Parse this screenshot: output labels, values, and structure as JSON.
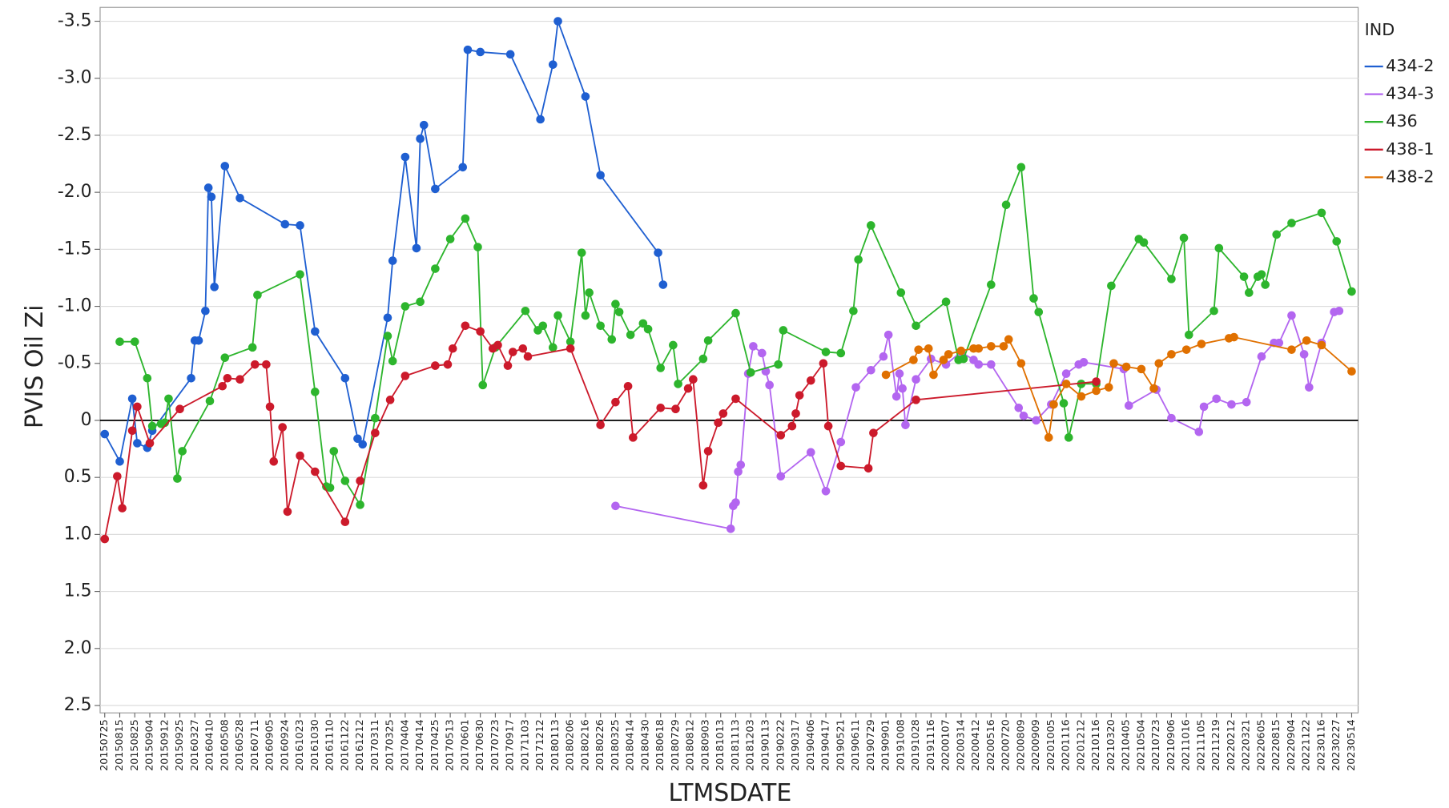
{
  "chart_data": {
    "type": "line",
    "x_label": "LTMSDATE",
    "y_label": "PVIS Oil Zi",
    "legend_title": "IND",
    "legend": "right",
    "grid": true,
    "hline": 0,
    "ylim": [
      2.5,
      -3.5
    ],
    "yticks": [
      -3.5,
      {
        "value": -3,
        "label": "-3.0"
      },
      -2.5,
      {
        "value": -2,
        "label": "-2.0"
      },
      -1.5,
      {
        "value": -1,
        "label": "-1.0"
      },
      -0.5,
      0,
      0.5,
      {
        "value": 1,
        "label": "1.0"
      },
      1.5,
      {
        "value": 2,
        "label": "2.0"
      },
      2.5
    ],
    "categories": [
      "20150725",
      "20150815",
      "20150825",
      "20150904",
      "20150912",
      "20150925",
      "20160327",
      "20160410",
      "20160508",
      "20160528",
      "20160711",
      "20160905",
      "20160924",
      "20161023",
      "20161030",
      "20161110",
      "20161122",
      "20161212",
      "20170311",
      "20170325",
      "20170404",
      "20170414",
      "20170425",
      "20170513",
      "20170601",
      "20170630",
      "20170723",
      "20170917",
      "20171103",
      "20171212",
      "20180113",
      "20180206",
      "20180216",
      "20180226",
      "20180325",
      "20180414",
      "20180430",
      "20180618",
      "20180729",
      "20180812",
      "20180903",
      "20181013",
      "20181113",
      "20181203",
      "20190113",
      "20190222",
      "20190317",
      "20190406",
      "20190417",
      "20190521",
      "20190611",
      "20190729",
      "20190901",
      "20191008",
      "20191028",
      "20191116",
      "20200107",
      "20200314",
      "20200412",
      "20200516",
      "20200720",
      "20200809",
      "20200909",
      "20201005",
      "20201116",
      "20201212",
      "20210116",
      "20210320",
      "20210405",
      "20210504",
      "20210723",
      "20210906",
      "20211016",
      "20211105",
      "20211219",
      "20220212",
      "20220321",
      "20220605",
      "20220815",
      "20220904",
      "20221122",
      "20230116",
      "20230227",
      "20230514"
    ],
    "series": [
      {
        "name": "434-2",
        "color": "#1f5fd1",
        "x": [
          "20150725",
          "20150815",
          "20150825",
          "20150825",
          "20150904",
          "20150904",
          "20160327",
          "20160327",
          "20160327",
          "20160410",
          "20160410",
          "20160410",
          "20160410",
          "20160508",
          "20160528",
          "20160924",
          "20161023",
          "20161030",
          "20161122",
          "20161212",
          "20161212",
          "20170325",
          "20170325",
          "20170404",
          "20170414",
          "20170414",
          "20170414",
          "20170425",
          "20170601",
          "20170601",
          "20170630",
          "20170917",
          "20171212",
          "20180113",
          "20180113",
          "20180216",
          "20180226",
          "20180618",
          "20180618"
        ],
        "values": [
          0.12,
          0.36,
          -0.19,
          0.2,
          0.24,
          0.09,
          -0.37,
          -0.7,
          -0.7,
          -0.96,
          -2.04,
          -1.96,
          -1.17,
          -2.23,
          -1.95,
          -1.72,
          -1.71,
          -0.78,
          -0.37,
          0.16,
          0.21,
          -0.9,
          -1.4,
          -2.31,
          -1.51,
          -2.47,
          -2.59,
          -2.03,
          -2.22,
          -3.25,
          -3.23,
          -3.21,
          -2.64,
          -3.12,
          -3.5,
          -2.84,
          -2.15,
          -1.47,
          -1.19
        ]
      },
      {
        "name": "434-3",
        "color": "#b366f0",
        "x": [
          "20180325",
          "20181113",
          "20181113",
          "20181113",
          "20181113",
          "20181113",
          "20181203",
          "20181203",
          "20190113",
          "20190113",
          "20190113",
          "20190222",
          "20190406",
          "20190417",
          "20190521",
          "20190611",
          "20190729",
          "20190901",
          "20190901",
          "20191008",
          "20191008",
          "20191008",
          "20191008",
          "20191028",
          "20191116",
          "20200107",
          "20200314",
          "20200412",
          "20200412",
          "20200516",
          "20200809",
          "20200809",
          "20200909",
          "20201005",
          "20201116",
          "20201212",
          "20201212",
          "20210405",
          "20210405",
          "20210723",
          "20210906",
          "20211105",
          "20211105",
          "20211219",
          "20220212",
          "20220321",
          "20220605",
          "20220815",
          "20220815",
          "20220904",
          "20221122",
          "20221122",
          "20230116",
          "20230227",
          "20230227"
        ],
        "values": [
          0.75,
          0.95,
          0.75,
          0.72,
          0.45,
          0.39,
          -0.41,
          -0.65,
          -0.59,
          -0.43,
          -0.31,
          0.49,
          0.28,
          0.62,
          0.19,
          -0.29,
          -0.44,
          -0.56,
          -0.75,
          -0.21,
          -0.41,
          -0.28,
          0.04,
          -0.36,
          -0.54,
          -0.49,
          -0.6,
          -0.53,
          -0.49,
          -0.49,
          -0.11,
          -0.04,
          0,
          -0.14,
          -0.41,
          -0.49,
          -0.51,
          -0.45,
          -0.13,
          -0.27,
          -0.02,
          0.1,
          -0.12,
          -0.19,
          -0.14,
          -0.16,
          -0.56,
          -0.68,
          -0.68,
          -0.92,
          -0.58,
          -0.29,
          -0.68,
          -0.95,
          -0.96
        ]
      },
      {
        "name": "436",
        "color": "#2db52d",
        "x": [
          "20150815",
          "20150825",
          "20150904",
          "20150904",
          "20150912",
          "20150912",
          "20150912",
          "20150925",
          "20150925",
          "20160410",
          "20160508",
          "20160711",
          "20160711",
          "20161023",
          "20161030",
          "20161110",
          "20161110",
          "20161110",
          "20161122",
          "20161212",
          "20170311",
          "20170325",
          "20170325",
          "20170404",
          "20170414",
          "20170425",
          "20170513",
          "20170601",
          "20170630",
          "20170630",
          "20170723",
          "20171103",
          "20171212",
          "20171212",
          "20180113",
          "20180113",
          "20180206",
          "20180216",
          "20180216",
          "20180216",
          "20180226",
          "20180325",
          "20180325",
          "20180325",
          "20180414",
          "20180430",
          "20180430",
          "20180618",
          "20180729",
          "20180729",
          "20180903",
          "20180903",
          "20181113",
          "20181203",
          "20190222",
          "20190222",
          "20190417",
          "20190521",
          "20190611",
          "20190611",
          "20190729",
          "20191008",
          "20191028",
          "20200107",
          "20200314",
          "20200314",
          "20200516",
          "20200720",
          "20200809",
          "20200909",
          "20200909",
          "20201116",
          "20201116",
          "20201212",
          "20210116",
          "20210320",
          "20210504",
          "20210504",
          "20210906",
          "20211016",
          "20211016",
          "20211219",
          "20211219",
          "20220321",
          "20220321",
          "20220605",
          "20220605",
          "20220605",
          "20220815",
          "20220904",
          "20230116",
          "20230227",
          "20230514"
        ],
        "values": [
          -0.69,
          -0.69,
          -0.37,
          0.05,
          0.03,
          0.02,
          -0.19,
          0.51,
          0.27,
          -0.17,
          -0.55,
          -0.64,
          -1.1,
          -1.28,
          -0.25,
          0.58,
          0.59,
          0.27,
          0.53,
          0.74,
          -0.02,
          -0.74,
          -0.52,
          -1,
          -1.04,
          -1.33,
          -1.59,
          -1.77,
          -1.52,
          -0.31,
          -0.64,
          -0.96,
          -0.79,
          -0.83,
          -0.64,
          -0.92,
          -0.69,
          -1.47,
          -0.92,
          -1.12,
          -0.83,
          -0.71,
          -1.02,
          -0.95,
          -0.75,
          -0.85,
          -0.8,
          -0.46,
          -0.66,
          -0.32,
          -0.54,
          -0.7,
          -0.94,
          -0.42,
          -0.49,
          -0.79,
          -0.6,
          -0.59,
          -0.96,
          -1.41,
          -1.71,
          -1.12,
          -0.83,
          -1.04,
          -0.53,
          -0.54,
          -1.19,
          -1.89,
          -2.22,
          -1.07,
          -0.95,
          -0.15,
          0.15,
          -0.32,
          -0.32,
          -1.18,
          -1.59,
          -1.56,
          -1.24,
          -1.6,
          -0.75,
          -0.96,
          -1.51,
          -1.26,
          -1.12,
          -1.26,
          -1.28,
          -1.19,
          -1.63,
          -1.73,
          -1.82,
          -1.57,
          -1.13
        ]
      },
      {
        "name": "438-1",
        "color": "#cc1a2b",
        "x": [
          "20150725",
          "20150815",
          "20150815",
          "20150825",
          "20150825",
          "20150904",
          "20150925",
          "20160508",
          "20160508",
          "20160528",
          "20160711",
          "20160905",
          "20160905",
          "20160905",
          "20160924",
          "20160924",
          "20161023",
          "20161030",
          "20161122",
          "20161212",
          "20170311",
          "20170325",
          "20170404",
          "20170425",
          "20170513",
          "20170513",
          "20170601",
          "20170630",
          "20170723",
          "20170723",
          "20170917",
          "20170917",
          "20171103",
          "20171103",
          "20180206",
          "20180226",
          "20180325",
          "20180414",
          "20180414",
          "20180618",
          "20180729",
          "20180812",
          "20180812",
          "20180903",
          "20180903",
          "20181013",
          "20181013",
          "20181113",
          "20190222",
          "20190317",
          "20190317",
          "20190317",
          "20190406",
          "20190417",
          "20190417",
          "20190521",
          "20190729",
          "20190729",
          "20191028",
          "20210116"
        ],
        "values": [
          1.04,
          0.49,
          0.77,
          0.09,
          -0.12,
          0.2,
          -0.1,
          -0.3,
          -0.37,
          -0.36,
          -0.49,
          -0.49,
          -0.12,
          0.36,
          0.06,
          0.8,
          0.31,
          0.45,
          0.89,
          0.53,
          0.11,
          -0.18,
          -0.39,
          -0.48,
          -0.49,
          -0.63,
          -0.83,
          -0.78,
          -0.63,
          -0.66,
          -0.48,
          -0.6,
          -0.63,
          -0.56,
          -0.63,
          0.04,
          -0.16,
          -0.3,
          0.15,
          -0.11,
          -0.1,
          -0.28,
          -0.36,
          0.57,
          0.27,
          0.02,
          -0.06,
          -0.19,
          0.13,
          0.05,
          -0.06,
          -0.22,
          -0.35,
          -0.5,
          0.05,
          0.4,
          0.42,
          0.11,
          -0.18,
          -0.34
        ]
      },
      {
        "name": "438-2",
        "color": "#e07000",
        "x": [
          "20190901",
          "20191028",
          "20191028",
          "20191116",
          "20191116",
          "20200107",
          "20200107",
          "20200314",
          "20200412",
          "20200412",
          "20200516",
          "20200720",
          "20200720",
          "20200809",
          "20201005",
          "20201005",
          "20201116",
          "20201212",
          "20210116",
          "20210320",
          "20210320",
          "20210405",
          "20210504",
          "20210723",
          "20210723",
          "20210906",
          "20211016",
          "20211105",
          "20220212",
          "20220212",
          "20220904",
          "20221122",
          "20230116",
          "20230514"
        ],
        "values": [
          -0.4,
          -0.53,
          -0.62,
          -0.63,
          -0.4,
          -0.53,
          -0.58,
          -0.61,
          -0.63,
          -0.63,
          -0.65,
          -0.65,
          -0.71,
          -0.5,
          0.15,
          -0.14,
          -0.32,
          -0.21,
          -0.26,
          -0.29,
          -0.5,
          -0.47,
          -0.45,
          -0.28,
          -0.5,
          -0.58,
          -0.62,
          -0.67,
          -0.72,
          -0.73,
          -0.62,
          -0.7,
          -0.66,
          -0.43
        ]
      }
    ]
  }
}
